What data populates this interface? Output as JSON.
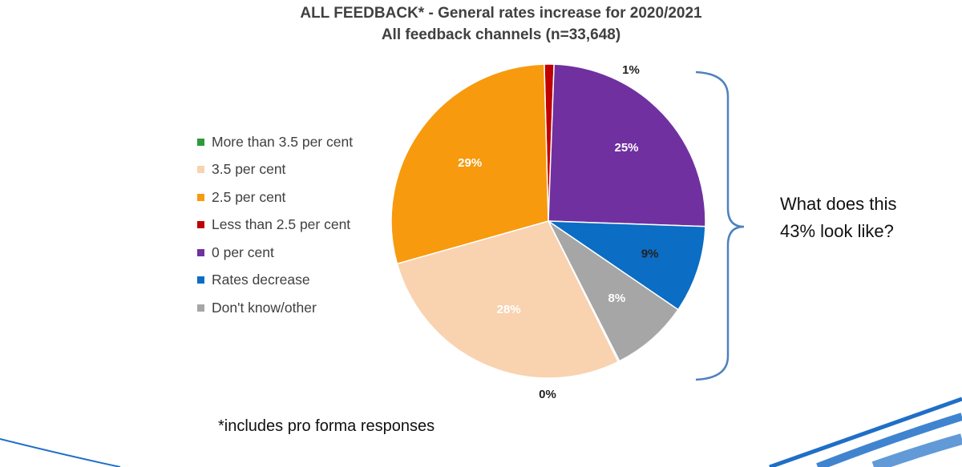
{
  "title_line1": "ALL FEEDBACK* - General rates increase for 2020/2021",
  "title_line2": "All feedback channels (n=33,648)",
  "chart_data": {
    "type": "pie",
    "title": "ALL FEEDBACK* - General rates increase for 2020/2021",
    "subtitle": "All feedback channels (n=33,648)",
    "legend_position": "left",
    "slices": [
      {
        "label": "More than 3.5 per cent",
        "value": 0,
        "display": "0%",
        "color": "#2e9a3a"
      },
      {
        "label": "3.5 per cent",
        "value": 28,
        "display": "28%",
        "color": "#f9d2b0"
      },
      {
        "label": "2.5 per cent",
        "value": 29,
        "display": "29%",
        "color": "#f79a0e"
      },
      {
        "label": "Less than 2.5 per cent",
        "value": 1,
        "display": "1%",
        "color": "#c00000"
      },
      {
        "label": "0 per cent",
        "value": 25,
        "display": "25%",
        "color": "#7030a0"
      },
      {
        "label": "Rates decrease",
        "value": 9,
        "display": "9%",
        "color": "#0b6dc4"
      },
      {
        "label": "Don't know/other",
        "value": 8,
        "display": "8%",
        "color": "#a6a6a6"
      }
    ]
  },
  "annotation": {
    "line1": "What does this",
    "line2": "43% look like?",
    "brace_color": "#4f81bd"
  },
  "footnote": "*includes pro forma responses",
  "decoration_color": "#1f6fc7"
}
